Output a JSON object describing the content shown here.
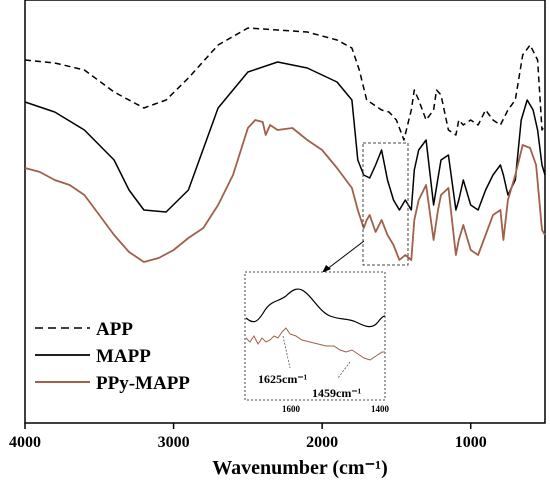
{
  "chart_data": {
    "type": "line",
    "xlabel": "Wavenumber (cm⁻¹)",
    "xlim": [
      4000,
      500
    ],
    "x_reversed": true,
    "x_ticks": [
      4000,
      3000,
      2000,
      1000
    ],
    "y_ticks_shown": false,
    "grid": false,
    "legend_position": "bottom-left",
    "colors": {
      "APP": "#000000",
      "MAPP": "#000000",
      "PPy-MAPP": "#a0604a"
    },
    "series": [
      {
        "name": "APP",
        "style": "dashed",
        "x": [
          4000,
          3800,
          3600,
          3400,
          3200,
          3050,
          2900,
          2700,
          2500,
          2300,
          2100,
          1900,
          1800,
          1750,
          1700,
          1600,
          1550,
          1500,
          1450,
          1400,
          1380,
          1350,
          1300,
          1250,
          1230,
          1200,
          1150,
          1100,
          1080,
          1050,
          1000,
          950,
          900,
          850,
          800,
          750,
          700,
          650,
          600,
          550,
          520,
          500
        ],
        "y": [
          60,
          63,
          70,
          92,
          108,
          100,
          78,
          45,
          28,
          30,
          32,
          40,
          48,
          70,
          100,
          110,
          112,
          120,
          140,
          110,
          90,
          100,
          120,
          110,
          90,
          95,
          130,
          135,
          120,
          125,
          120,
          125,
          110,
          120,
          125,
          110,
          100,
          55,
          45,
          60,
          130,
          125
        ]
      },
      {
        "name": "MAPP",
        "style": "solid",
        "x": [
          4000,
          3800,
          3600,
          3400,
          3300,
          3200,
          3050,
          2900,
          2700,
          2500,
          2300,
          2100,
          1900,
          1800,
          1760,
          1720,
          1680,
          1640,
          1600,
          1560,
          1520,
          1480,
          1440,
          1400,
          1380,
          1350,
          1300,
          1250,
          1220,
          1200,
          1150,
          1100,
          1080,
          1050,
          1000,
          950,
          900,
          850,
          800,
          780,
          750,
          700,
          660,
          620,
          580,
          550,
          520,
          500
        ],
        "y": [
          102,
          112,
          130,
          160,
          190,
          210,
          212,
          190,
          108,
          72,
          62,
          68,
          82,
          100,
          160,
          175,
          178,
          165,
          150,
          180,
          200,
          210,
          200,
          210,
          170,
          150,
          140,
          205,
          178,
          160,
          155,
          210,
          200,
          180,
          205,
          210,
          190,
          175,
          165,
          175,
          195,
          180,
          120,
          100,
          110,
          130,
          165,
          175
        ]
      },
      {
        "name": "PPy-MAPP",
        "style": "solid",
        "x": [
          4000,
          3900,
          3800,
          3700,
          3600,
          3500,
          3400,
          3300,
          3200,
          3100,
          3000,
          2900,
          2800,
          2700,
          2600,
          2500,
          2450,
          2400,
          2380,
          2350,
          2300,
          2200,
          2100,
          2000,
          1900,
          1800,
          1760,
          1720,
          1700,
          1680,
          1640,
          1600,
          1560,
          1520,
          1480,
          1440,
          1400,
          1380,
          1350,
          1300,
          1250,
          1220,
          1200,
          1150,
          1100,
          1080,
          1050,
          1000,
          950,
          900,
          850,
          800,
          780,
          750,
          700,
          650,
          600,
          560,
          520,
          500
        ],
        "y": [
          168,
          172,
          180,
          185,
          195,
          215,
          235,
          252,
          262,
          258,
          250,
          238,
          228,
          205,
          175,
          128,
          120,
          122,
          135,
          125,
          130,
          128,
          140,
          150,
          168,
          188,
          210,
          228,
          220,
          215,
          232,
          220,
          235,
          245,
          260,
          255,
          260,
          220,
          200,
          185,
          240,
          210,
          195,
          188,
          255,
          240,
          225,
          250,
          255,
          235,
          215,
          210,
          240,
          200,
          175,
          145,
          148,
          165,
          230,
          235
        ]
      }
    ],
    "inset": {
      "x_ticks": [
        1600,
        1400
      ],
      "annotations": [
        "1625cm⁻¹",
        "1459cm⁻¹"
      ]
    }
  }
}
